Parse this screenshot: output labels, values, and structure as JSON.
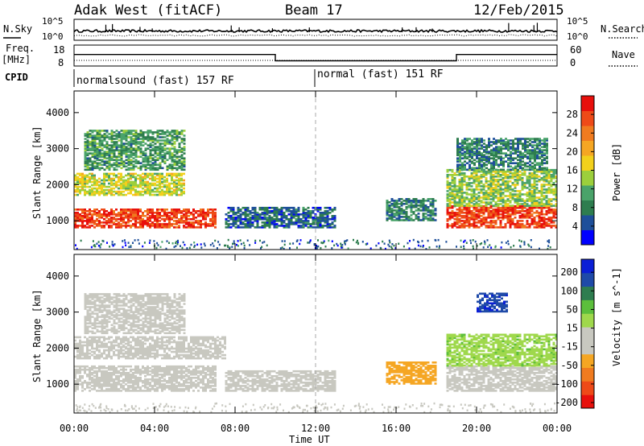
{
  "header": {
    "station": "Adak West (fitACF)",
    "beam": "Beam 17",
    "date": "12/Feb/2015"
  },
  "left_labels": {
    "nsky": "N.Sky",
    "freq": "Freq.",
    "freq_unit": "[MHz]",
    "cpid": "CPID"
  },
  "right_labels": {
    "nsearch": "N.Search",
    "nave": "Nave"
  },
  "noise_axis": {
    "left_top": "10^5",
    "left_bottom": "10^0",
    "right_top": "10^5",
    "right_bottom": "10^0"
  },
  "freq_axis": {
    "left_top": "18",
    "left_bottom": "8",
    "right_top": "60",
    "right_bottom": "0"
  },
  "cpid_segments": [
    {
      "label": "normalsound (fast) 157 RF",
      "start": "00:00",
      "end": "12:00"
    },
    {
      "label": "normal (fast) 151 RF",
      "start": "12:00",
      "end": "24:00"
    }
  ],
  "freq_steps": [
    {
      "start_h": 0,
      "end_h": 10.0,
      "freq": 13.5
    },
    {
      "start_h": 10.0,
      "end_h": 19.0,
      "freq": 10.5
    },
    {
      "start_h": 19.0,
      "end_h": 24.0,
      "freq": 13.5
    }
  ],
  "colors": {
    "power_scale": [
      "#0000ff",
      "#1e4f9a",
      "#2e7d4f",
      "#4aa36a",
      "#9ccf3c",
      "#f2d01c",
      "#f5a623",
      "#f07b1f",
      "#ee4a18",
      "#e8100c"
    ],
    "velocity_scale": [
      "#e8100c",
      "#ee4a18",
      "#f07b1f",
      "#f5a623",
      "#c8c8c0",
      "#c8c8c0",
      "#9fd84c",
      "#5cbf3c",
      "#2e7d4f",
      "#1f4aa8",
      "#0b1fd6"
    ]
  },
  "chart_data": [
    {
      "type": "heatmap",
      "name": "power",
      "ylabel": "Slant Range [km]",
      "colorbar_label": "Power [dB]",
      "colorbar_ticks": [
        "4",
        "8",
        "12",
        "16",
        "20",
        "24",
        "28"
      ],
      "colorbar_range": [
        0,
        32
      ],
      "x_ticks": [
        "00:00",
        "04:00",
        "08:00",
        "12:00",
        "16:00",
        "20:00",
        "00:00"
      ],
      "xlim_hours": [
        0,
        24
      ],
      "y_ticks": [
        "1000",
        "2000",
        "3000",
        "4000"
      ],
      "ylim": [
        200,
        4600
      ],
      "features": [
        {
          "start_h": 0.0,
          "end_h": 7.0,
          "range_from": 800,
          "range_to": 1300,
          "level": 28
        },
        {
          "start_h": 0.0,
          "end_h": 5.5,
          "range_from": 1700,
          "range_to": 2300,
          "level": 16
        },
        {
          "start_h": 0.5,
          "end_h": 5.5,
          "range_from": 2400,
          "range_to": 3500,
          "level": 10
        },
        {
          "start_h": 18.5,
          "end_h": 24.0,
          "range_from": 800,
          "range_to": 1400,
          "level": 28
        },
        {
          "start_h": 18.5,
          "end_h": 24.0,
          "range_from": 1400,
          "range_to": 2400,
          "level": 14
        },
        {
          "start_h": 19.0,
          "end_h": 23.5,
          "range_from": 2400,
          "range_to": 3300,
          "level": 8
        },
        {
          "start_h": 7.5,
          "end_h": 13.0,
          "range_from": 800,
          "range_to": 1350,
          "level": 6
        },
        {
          "start_h": 15.5,
          "end_h": 18.0,
          "range_from": 1000,
          "range_to": 1600,
          "level": 8
        }
      ]
    },
    {
      "type": "heatmap",
      "name": "velocity",
      "ylabel": "Slant Range [km]",
      "colorbar_label": "Velocity [m s^-1]",
      "colorbar_ticks": [
        "200",
        "100",
        "50",
        "15",
        "-15",
        "-50",
        "-100",
        "-200"
      ],
      "colorbar_range": [
        -250,
        250
      ],
      "x_ticks": [
        "00:00",
        "04:00",
        "08:00",
        "12:00",
        "16:00",
        "20:00",
        "00:00"
      ],
      "xlim_hours": [
        0,
        24
      ],
      "xlabel": "Time UT",
      "y_ticks": [
        "1000",
        "2000",
        "3000",
        "4000"
      ],
      "ylim": [
        200,
        4600
      ],
      "features": [
        {
          "start_h": 0.0,
          "end_h": 7.0,
          "range_from": 800,
          "range_to": 1500,
          "level": 0
        },
        {
          "start_h": 0.0,
          "end_h": 7.5,
          "range_from": 1700,
          "range_to": 2300,
          "level": 0
        },
        {
          "start_h": 0.5,
          "end_h": 5.5,
          "range_from": 2400,
          "range_to": 3500,
          "level": -10
        },
        {
          "start_h": 18.5,
          "end_h": 24.0,
          "range_from": 800,
          "range_to": 1500,
          "level": 0
        },
        {
          "start_h": 18.5,
          "end_h": 24.0,
          "range_from": 1500,
          "range_to": 2400,
          "level": 60
        },
        {
          "start_h": 20.0,
          "end_h": 21.5,
          "range_from": 3000,
          "range_to": 3500,
          "level": 200
        },
        {
          "start_h": 7.5,
          "end_h": 13.0,
          "range_from": 800,
          "range_to": 1350,
          "level": -30
        },
        {
          "start_h": 15.5,
          "end_h": 18.0,
          "range_from": 1000,
          "range_to": 1600,
          "level": -80
        }
      ]
    }
  ]
}
